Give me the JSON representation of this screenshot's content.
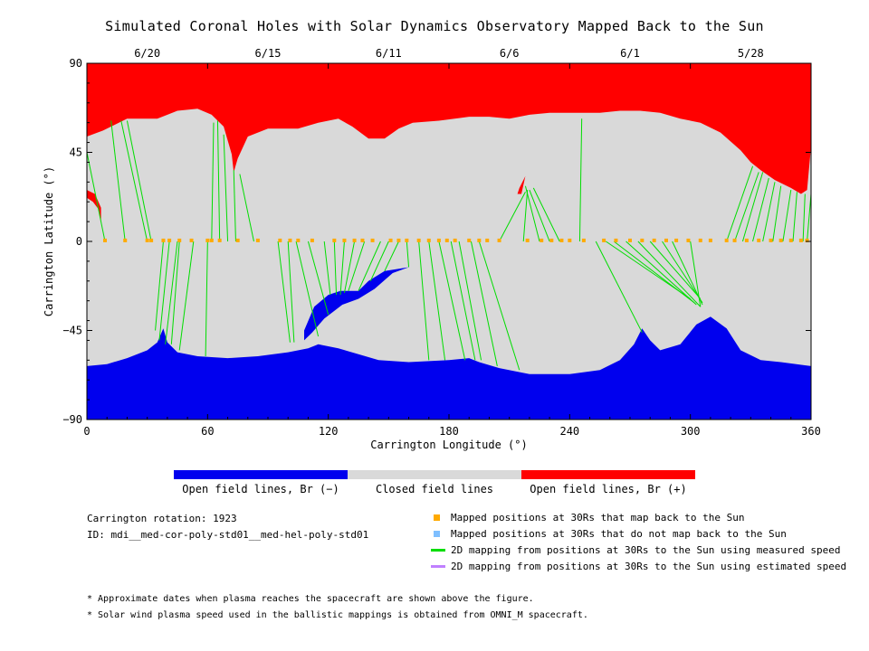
{
  "title": "Simulated Coronal Holes with Solar Dynamics Observatory Mapped Back to the Sun",
  "colors": {
    "open_negative": "#0000ee",
    "closed": "#d9d9d9",
    "open_positive": "#ff0000",
    "mapped_back": "#ffaa00",
    "not_mapped": "#7fbfff",
    "measured_line": "#00dd00",
    "estimated_line": "#c080ff"
  },
  "colorbar": {
    "labels": [
      "Open field lines, Br (−)",
      "Closed field lines",
      "Open field lines, Br (+)"
    ]
  },
  "info": {
    "rotation": "Carrington rotation: 1923",
    "id": "ID: mdi__med-cor-poly-std01__med-hel-poly-std01"
  },
  "legend": [
    {
      "label": "Mapped positions at 30Rs that map back to the Sun",
      "kind": "square",
      "color_key": "mapped_back"
    },
    {
      "label": "Mapped positions at 30Rs that do not map back to the Sun",
      "kind": "square",
      "color_key": "not_mapped"
    },
    {
      "label": "2D mapping from positions at 30Rs to the Sun using measured speed",
      "kind": "line",
      "color_key": "measured_line"
    },
    {
      "label": "2D mapping from positions at 30Rs to the Sun using estimated speed",
      "kind": "line",
      "color_key": "estimated_line"
    }
  ],
  "footnotes": [
    "* Approximate dates when plasma reaches the spacecraft are shown above the figure.",
    "* Solar wind plasma speed used in the ballistic mappings is obtained from OMNI_M spacecraft."
  ],
  "chart_data": {
    "type": "heatmap",
    "xlabel": "Carrington Longitude (°)",
    "ylabel": "Carrington Latitude (°)",
    "xlim": [
      0,
      360
    ],
    "ylim": [
      -90,
      90
    ],
    "x_ticks": [
      0,
      60,
      120,
      180,
      240,
      300,
      360
    ],
    "y_ticks": [
      -90,
      -45,
      0,
      45,
      90
    ],
    "top_dates": [
      {
        "label": "6/20",
        "lon": 30
      },
      {
        "label": "6/15",
        "lon": 90
      },
      {
        "label": "6/11",
        "lon": 150
      },
      {
        "label": "6/6",
        "lon": 210
      },
      {
        "label": "6/1",
        "lon": 270
      },
      {
        "label": "5/28",
        "lon": 330
      }
    ],
    "north_boundary": [
      [
        0,
        53
      ],
      [
        8,
        56
      ],
      [
        20,
        62
      ],
      [
        35,
        62
      ],
      [
        45,
        66
      ],
      [
        55,
        67
      ],
      [
        62,
        64
      ],
      [
        68,
        58
      ],
      [
        72,
        44
      ],
      [
        73,
        35
      ],
      [
        75,
        42
      ],
      [
        80,
        53
      ],
      [
        90,
        57
      ],
      [
        105,
        57
      ],
      [
        115,
        60
      ],
      [
        125,
        62
      ],
      [
        132,
        58
      ],
      [
        140,
        52
      ],
      [
        148,
        52
      ],
      [
        155,
        57
      ],
      [
        162,
        60
      ],
      [
        175,
        61
      ],
      [
        190,
        63
      ],
      [
        200,
        63
      ],
      [
        210,
        62
      ],
      [
        220,
        64
      ],
      [
        230,
        65
      ],
      [
        240,
        65
      ],
      [
        255,
        65
      ],
      [
        265,
        66
      ],
      [
        275,
        66
      ],
      [
        285,
        65
      ],
      [
        295,
        62
      ],
      [
        305,
        60
      ],
      [
        315,
        55
      ],
      [
        325,
        46
      ],
      [
        330,
        40
      ],
      [
        335,
        36
      ],
      [
        342,
        31
      ],
      [
        350,
        27
      ],
      [
        355,
        24
      ],
      [
        358,
        26
      ],
      [
        360,
        48
      ]
    ],
    "south_boundary": [
      [
        0,
        -63
      ],
      [
        10,
        -62
      ],
      [
        20,
        -59
      ],
      [
        30,
        -55
      ],
      [
        35,
        -51
      ],
      [
        38,
        -44
      ],
      [
        40,
        -51
      ],
      [
        45,
        -56
      ],
      [
        55,
        -58
      ],
      [
        70,
        -59
      ],
      [
        85,
        -58
      ],
      [
        100,
        -56
      ],
      [
        110,
        -54
      ],
      [
        115,
        -52
      ],
      [
        125,
        -54
      ],
      [
        135,
        -57
      ],
      [
        145,
        -60
      ],
      [
        160,
        -61
      ],
      [
        180,
        -60
      ],
      [
        190,
        -59
      ],
      [
        195,
        -61
      ],
      [
        205,
        -64
      ],
      [
        220,
        -67
      ],
      [
        240,
        -67
      ],
      [
        255,
        -65
      ],
      [
        265,
        -60
      ],
      [
        272,
        -52
      ],
      [
        276,
        -44
      ],
      [
        280,
        -50
      ],
      [
        285,
        -55
      ],
      [
        295,
        -52
      ],
      [
        303,
        -42
      ],
      [
        310,
        -38
      ],
      [
        318,
        -44
      ],
      [
        325,
        -55
      ],
      [
        335,
        -60
      ],
      [
        345,
        -61
      ],
      [
        360,
        -63
      ]
    ],
    "south_tongue": [
      [
        108,
        -45
      ],
      [
        113,
        -33
      ],
      [
        120,
        -27
      ],
      [
        126,
        -25
      ],
      [
        135,
        -25
      ],
      [
        140,
        -20
      ],
      [
        148,
        -15
      ],
      [
        160,
        -13
      ],
      [
        152,
        -16
      ],
      [
        143,
        -24
      ],
      [
        135,
        -29
      ],
      [
        127,
        -32
      ],
      [
        118,
        -39
      ],
      [
        112,
        -46
      ],
      [
        108,
        -50
      ]
    ],
    "north_small_patches": [
      [
        [
          0,
          26
        ],
        [
          4,
          24
        ],
        [
          7,
          17
        ],
        [
          7,
          10
        ],
        [
          6,
          16
        ],
        [
          3,
          20
        ],
        [
          0,
          22
        ]
      ],
      [
        [
          215,
          27
        ],
        [
          218,
          33
        ],
        [
          216,
          24
        ],
        [
          214,
          24
        ]
      ]
    ],
    "mapped_points_lon": [
      9,
      19,
      30,
      32,
      38,
      41,
      46,
      52,
      60,
      62,
      66,
      75,
      85,
      96,
      101,
      105,
      112,
      123,
      128,
      133,
      137,
      142,
      151,
      155,
      159,
      165,
      170,
      175,
      179,
      183,
      190,
      195,
      199,
      205,
      219,
      226,
      231,
      236,
      240,
      247,
      257,
      263,
      270,
      276,
      282,
      288,
      293,
      299,
      305,
      310,
      318,
      322,
      328,
      334,
      340,
      345,
      350,
      355,
      358
    ],
    "mapped_points_lat": 0.5,
    "mapping_lines": [
      [
        9,
        0,
        0,
        45
      ],
      [
        19,
        0,
        12,
        61
      ],
      [
        30,
        0,
        17,
        61
      ],
      [
        32,
        0,
        20,
        61
      ],
      [
        38,
        0,
        34,
        -45
      ],
      [
        41,
        0,
        36,
        -50
      ],
      [
        45,
        0,
        39,
        -52
      ],
      [
        46,
        0,
        42,
        -52
      ],
      [
        53,
        0,
        46,
        -55
      ],
      [
        60,
        0,
        59,
        -58
      ],
      [
        62,
        0,
        63,
        60
      ],
      [
        66,
        0,
        65,
        61
      ],
      [
        70,
        0,
        68,
        54
      ],
      [
        74,
        0,
        73,
        36
      ],
      [
        83,
        0,
        76,
        34
      ],
      [
        95,
        0,
        101,
        -51
      ],
      [
        100,
        0,
        103,
        -51
      ],
      [
        104,
        0,
        115,
        -48
      ],
      [
        110,
        0,
        120,
        -37
      ],
      [
        118,
        0,
        121,
        -27
      ],
      [
        123,
        0,
        124,
        -27
      ],
      [
        128,
        0,
        126,
        -27
      ],
      [
        133,
        0,
        128,
        -26
      ],
      [
        138,
        0,
        130,
        -25
      ],
      [
        146,
        0,
        135,
        -25
      ],
      [
        150,
        0,
        141,
        -20
      ],
      [
        155,
        0,
        148,
        -15
      ],
      [
        159,
        0,
        160,
        -13
      ],
      [
        165,
        0,
        170,
        -60
      ],
      [
        170,
        0,
        178,
        -60
      ],
      [
        175,
        0,
        188,
        -60
      ],
      [
        181,
        0,
        193,
        -60
      ],
      [
        185,
        0,
        196,
        -60
      ],
      [
        191,
        0,
        204,
        -63
      ],
      [
        195,
        0,
        215,
        -65
      ],
      [
        205,
        0,
        218,
        25
      ],
      [
        217,
        0,
        219,
        26
      ],
      [
        225,
        0,
        218,
        28
      ],
      [
        230,
        0,
        220,
        26
      ],
      [
        235,
        0,
        222,
        27
      ],
      [
        245,
        0,
        246,
        62
      ],
      [
        253,
        0,
        276,
        -46
      ],
      [
        258,
        0,
        300,
        -29
      ],
      [
        262,
        0,
        302,
        -31
      ],
      [
        268,
        0,
        303,
        -32
      ],
      [
        274,
        0,
        305,
        -33
      ],
      [
        280,
        0,
        305,
        -29
      ],
      [
        286,
        0,
        306,
        -31
      ],
      [
        291,
        0,
        306,
        -32
      ],
      [
        300,
        0,
        305,
        -33
      ],
      [
        318,
        0,
        331,
        38
      ],
      [
        322,
        0,
        334,
        35
      ],
      [
        326,
        0,
        336,
        35
      ],
      [
        331,
        0,
        339,
        32
      ],
      [
        336,
        0,
        342,
        30
      ],
      [
        341,
        0,
        345,
        28
      ],
      [
        346,
        0,
        350,
        26
      ],
      [
        351,
        0,
        353,
        25
      ],
      [
        356,
        0,
        357,
        24
      ],
      [
        358,
        0,
        360,
        24
      ]
    ]
  }
}
